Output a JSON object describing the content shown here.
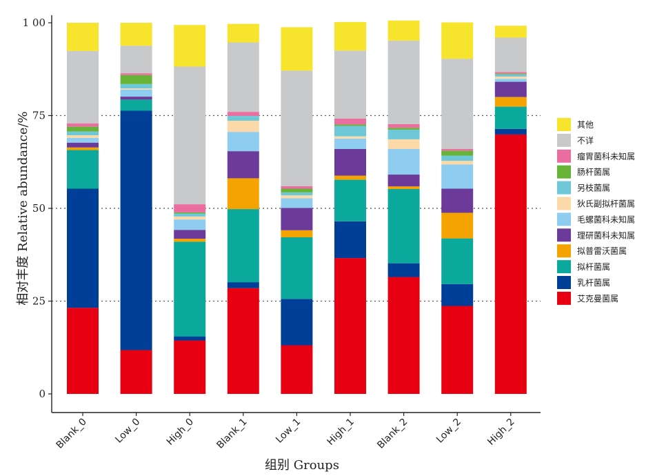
{
  "chart_data": {
    "type": "bar",
    "stacked": true,
    "xlabel": "组别  Groups",
    "ylabel": "相对丰度  Relative abundance/%",
    "ylim": [
      0,
      100
    ],
    "yticks": [
      0,
      25,
      50,
      75,
      100
    ],
    "ytick_labels": [
      "0",
      "25",
      "50",
      "75",
      "1 00"
    ],
    "dotted_gridlines": [
      25,
      50,
      75
    ],
    "legend_position": "right",
    "categories": [
      "Blank_0",
      "Low_0",
      "High_0",
      "Blank_1",
      "Low_1",
      "High_1",
      "Blank_2",
      "Low_2",
      "High_2"
    ],
    "series": [
      {
        "name": "艾克曼菌属",
        "color": "#e60012",
        "values": [
          23.2,
          11.8,
          14.4,
          28.5,
          13.1,
          36.6,
          31.5,
          23.7,
          69.9
        ]
      },
      {
        "name": "乳杆菌属",
        "color": "#003f98",
        "values": [
          32.1,
          64.5,
          1.1,
          1.6,
          12.5,
          9.9,
          3.7,
          5.9,
          1.5
        ]
      },
      {
        "name": "拟杆菌属",
        "color": "#0aa99c",
        "values": [
          10.4,
          3.0,
          25.5,
          19.7,
          16.6,
          11.2,
          20.0,
          12.3,
          6.0
        ]
      },
      {
        "name": "拟普雷沃菌属",
        "color": "#f5a300",
        "values": [
          0.7,
          0.0,
          0.8,
          8.3,
          1.9,
          1.1,
          0.7,
          6.9,
          2.6
        ]
      },
      {
        "name": "理研菌科未知属",
        "color": "#6c3b9a",
        "values": [
          1.3,
          0.8,
          2.4,
          7.3,
          6.0,
          7.2,
          3.2,
          6.5,
          4.1
        ]
      },
      {
        "name": "毛螺菌科未知属",
        "color": "#8ecdf0",
        "values": [
          1.3,
          1.9,
          2.8,
          5.2,
          2.6,
          2.8,
          6.9,
          6.5,
          0.8
        ]
      },
      {
        "name": "狄氏副拟杆菌属",
        "color": "#fcd9a8",
        "values": [
          0.7,
          0.3,
          0.8,
          3.0,
          0.8,
          0.6,
          2.6,
          1.0,
          0.6
        ]
      },
      {
        "name": "另枝菌属",
        "color": "#6ec8d8",
        "values": [
          1.0,
          1.2,
          0.8,
          1.3,
          0.8,
          2.8,
          2.6,
          1.4,
          0.6
        ]
      },
      {
        "name": "肠杆菌属",
        "color": "#67b337",
        "values": [
          1.3,
          2.4,
          0.3,
          0.0,
          1.0,
          0.4,
          0.5,
          1.3,
          0.2
        ]
      },
      {
        "name": "瘤胃菌科未知属",
        "color": "#ea6fa0",
        "values": [
          0.9,
          0.5,
          2.2,
          1.1,
          0.7,
          1.6,
          1.0,
          0.5,
          0.4
        ]
      },
      {
        "name": "不详",
        "color": "#c8c9ca",
        "values": [
          19.5,
          7.4,
          37.1,
          18.7,
          31.1,
          18.3,
          22.5,
          24.3,
          9.3
        ]
      },
      {
        "name": "其他",
        "color": "#f6e42d",
        "values": [
          7.6,
          6.2,
          11.2,
          5.0,
          11.7,
          7.7,
          5.4,
          9.8,
          3.2
        ]
      }
    ],
    "legend_order": [
      "其他",
      "不详",
      "瘤胃菌科未知属",
      "肠杆菌属",
      "另枝菌属",
      "狄氏副拟杆菌属",
      "毛螺菌科未知属",
      "理研菌科未知属",
      "拟普雷沃菌属",
      "拟杆菌属",
      "乳杆菌属",
      "艾克曼菌属"
    ]
  }
}
